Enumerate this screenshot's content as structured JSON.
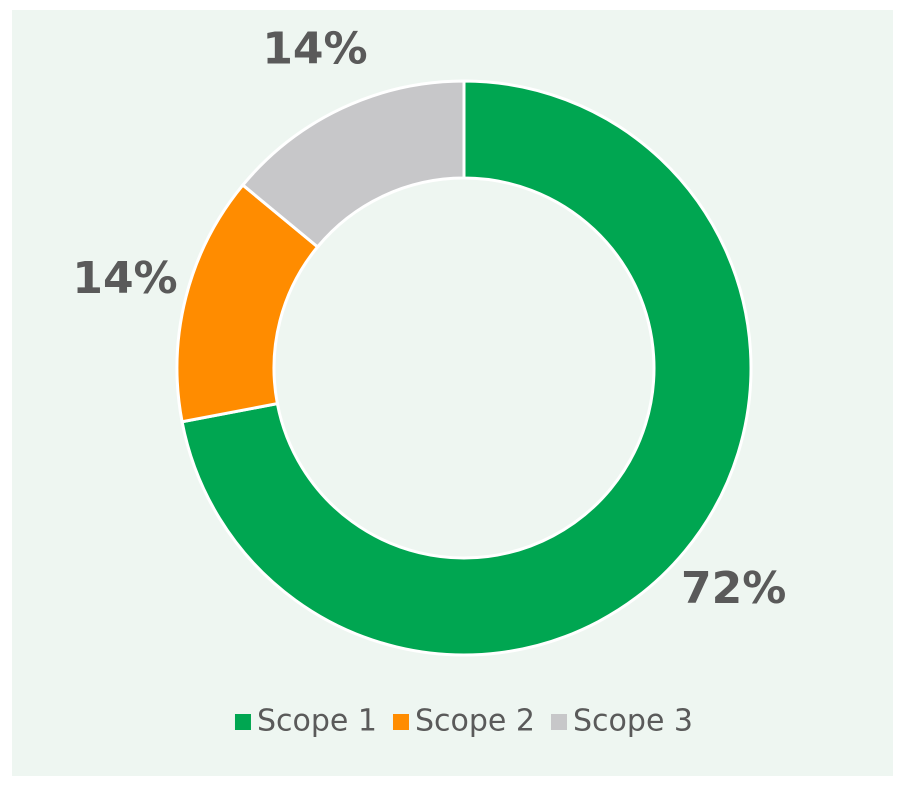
{
  "chart_data": {
    "type": "pie",
    "donut": true,
    "categories": [
      "Scope 1",
      "Scope 2",
      "Scope 3"
    ],
    "values": [
      72,
      14,
      14
    ],
    "value_labels": [
      "72%",
      "14%",
      "14%"
    ],
    "colors": [
      "#00a651",
      "#ff8c00",
      "#c7c7c9"
    ],
    "legend": "bottom"
  }
}
